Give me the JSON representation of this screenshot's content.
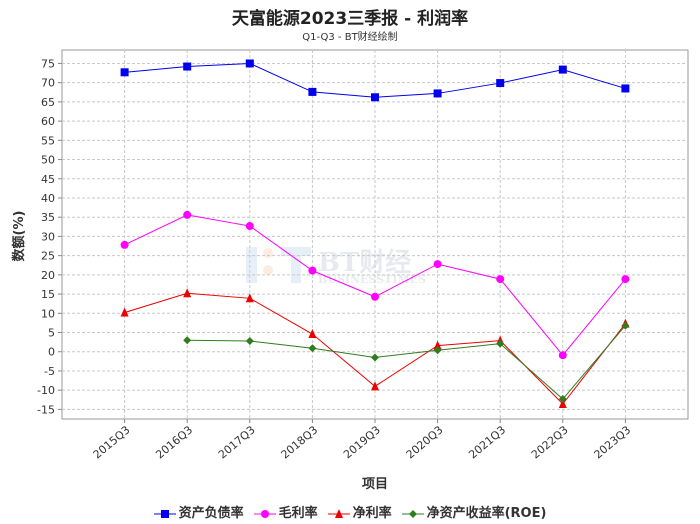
{
  "title": "天富能源2023三季报 - 利润率",
  "subtitle": "Q1-Q3 - BT财经绘制",
  "watermark": {
    "main": "BT财经",
    "sub": "BUSINESSTIMES"
  },
  "chart_data": {
    "type": "line",
    "xlabel": "项目",
    "ylabel": "数额(%)",
    "ylim": [
      -17.5,
      78.5
    ],
    "yticks": [
      -15,
      -10,
      -5,
      0,
      5,
      10,
      15,
      20,
      25,
      30,
      35,
      40,
      45,
      50,
      55,
      60,
      65,
      70,
      75
    ],
    "grid": true,
    "legend_position": "bottom",
    "categories": [
      "2015Q3",
      "2016Q3",
      "2017Q3",
      "2018Q3",
      "2019Q3",
      "2020Q3",
      "2021Q3",
      "2022Q3",
      "2023Q3"
    ],
    "series": [
      {
        "name": "资产负债率",
        "color": "#0000ee",
        "marker": "square",
        "values": [
          72.7,
          74.2,
          75.0,
          67.6,
          66.2,
          67.2,
          69.9,
          73.4,
          68.5
        ]
      },
      {
        "name": "毛利率",
        "color": "#ff00ff",
        "marker": "circle",
        "values": [
          27.8,
          35.6,
          32.7,
          21.1,
          14.3,
          22.8,
          18.9,
          -0.9,
          18.9
        ]
      },
      {
        "name": "净利率",
        "color": "#ee0000",
        "marker": "triangle",
        "values": [
          10.2,
          15.2,
          13.9,
          4.6,
          -9.0,
          1.6,
          2.9,
          -13.6,
          7.3
        ]
      },
      {
        "name": "净资产收益率(ROE)",
        "color": "#2e7d1e",
        "marker": "diamond",
        "values": [
          null,
          3.0,
          2.8,
          0.9,
          -1.5,
          0.4,
          2.1,
          -12.3,
          6.8
        ]
      }
    ]
  }
}
